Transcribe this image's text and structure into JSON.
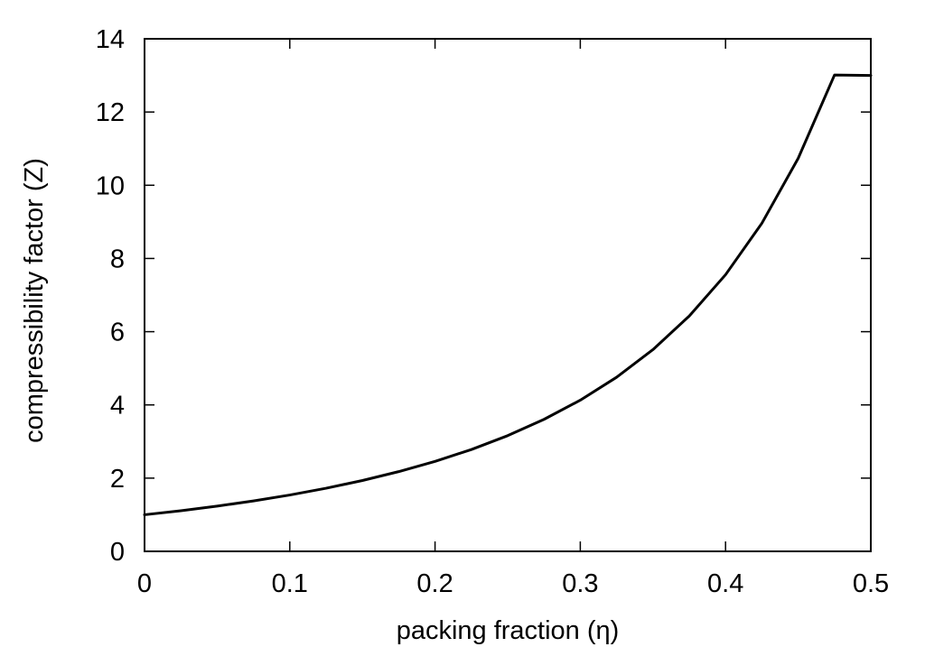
{
  "chart_data": {
    "type": "line",
    "title": "",
    "xlabel": "packing fraction (η)",
    "ylabel": "compressibility factor (Z)",
    "xlim": [
      0,
      0.5
    ],
    "ylim": [
      0,
      14
    ],
    "x_ticks": [
      "0",
      "0.1",
      "0.2",
      "0.3",
      "0.4",
      "0.5"
    ],
    "y_ticks": [
      "0",
      "2",
      "4",
      "6",
      "8",
      "10",
      "12",
      "14"
    ],
    "grid": false,
    "legend": "none",
    "series": [
      {
        "color": "#000000",
        "x": [
          0,
          0.025,
          0.05,
          0.075,
          0.1,
          0.125,
          0.15,
          0.175,
          0.2,
          0.225,
          0.25,
          0.275,
          0.3,
          0.325,
          0.35,
          0.375,
          0.4,
          0.425,
          0.45,
          0.475,
          0.5
        ],
        "y": [
          1.0,
          1.11,
          1.235,
          1.378,
          1.539,
          1.724,
          1.935,
          2.178,
          2.457,
          2.781,
          3.16,
          3.605,
          4.129,
          4.755,
          5.509,
          6.427,
          7.556,
          8.961,
          10.735,
          13.01,
          13.0
        ]
      }
    ]
  }
}
